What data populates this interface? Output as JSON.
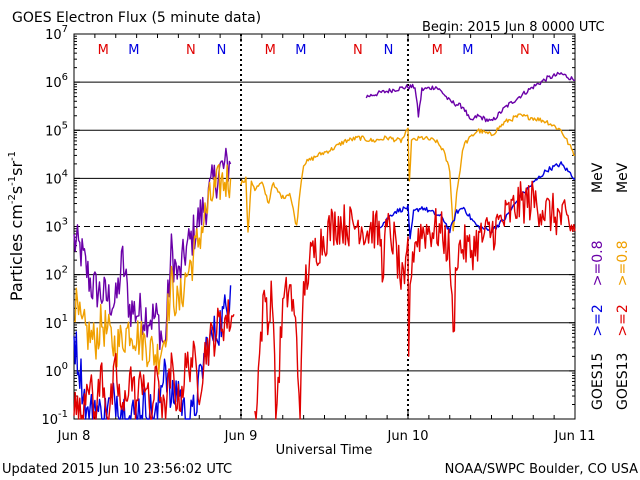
{
  "chart_data": {
    "type": "line",
    "title": "GOES Electron Flux (5 minute data)",
    "begin_label": "Begin: 2015 Jun 8 0000 UTC",
    "xlabel": "Universal Time",
    "ylabel_parts": [
      "Particles cm",
      "-2",
      "s",
      "-1",
      "sr",
      "-1"
    ],
    "updated": "Updated 2015 Jun 10 23:56:02 UTC",
    "credit": "NOAA/SWPC Boulder, CO USA",
    "x_ticks": [
      {
        "label": "Jun 8",
        "hours": 0
      },
      {
        "label": "Jun 9",
        "hours": 24
      },
      {
        "label": "Jun 10",
        "hours": 48
      },
      {
        "label": "Jun 11",
        "hours": 72
      }
    ],
    "x_range_hours": [
      0,
      72
    ],
    "y_scale": "log",
    "y_range": [
      0.1,
      10000000
    ],
    "y_ticks": [
      {
        "base": "10",
        "exp": "-1",
        "value": 0.1
      },
      {
        "base": "10",
        "exp": "0",
        "value": 1
      },
      {
        "base": "10",
        "exp": "1",
        "value": 10
      },
      {
        "base": "10",
        "exp": "2",
        "value": 100
      },
      {
        "base": "10",
        "exp": "3",
        "value": 1000
      },
      {
        "base": "10",
        "exp": "4",
        "value": 10000
      },
      {
        "base": "10",
        "exp": "5",
        "value": 100000
      },
      {
        "base": "10",
        "exp": "6",
        "value": 1000000
      },
      {
        "base": "10",
        "exp": "7",
        "value": 10000000
      }
    ],
    "threshold": 1000,
    "markers": [
      {
        "label": "M",
        "hours": 4.2,
        "color": "#e00000"
      },
      {
        "label": "M",
        "hours": 8.6,
        "color": "#0000e0"
      },
      {
        "label": "N",
        "hours": 16.8,
        "color": "#e00000"
      },
      {
        "label": "N",
        "hours": 21.2,
        "color": "#0000e0"
      },
      {
        "label": "M",
        "hours": 28.2,
        "color": "#e00000"
      },
      {
        "label": "M",
        "hours": 32.6,
        "color": "#0000e0"
      },
      {
        "label": "N",
        "hours": 40.8,
        "color": "#e00000"
      },
      {
        "label": "N",
        "hours": 45.2,
        "color": "#0000e0"
      },
      {
        "label": "M",
        "hours": 52.2,
        "color": "#e00000"
      },
      {
        "label": "M",
        "hours": 56.6,
        "color": "#0000e0"
      },
      {
        "label": "N",
        "hours": 64.8,
        "color": "#e00000"
      },
      {
        "label": "N",
        "hours": 69.2,
        "color": "#0000e0"
      }
    ],
    "legend": {
      "satellites": [
        {
          "label": "GOES15",
          "color": "#000000"
        },
        {
          "label": "GOES13",
          "color": "#000000"
        }
      ],
      "energies": [
        {
          "label": ">=2",
          "color": "#0000e0"
        },
        {
          "label": ">=2",
          "color": "#e00000"
        },
        {
          "label": ">=0.8",
          "color": "#6a00a8"
        },
        {
          "label": ">=0.8",
          "color": "#f0a000"
        }
      ],
      "unit": "MeV"
    },
    "series": [
      {
        "color": "#6a00a8",
        "segments": [
          {
            "type": "noisy",
            "points": [
              [
                0,
                500
              ],
              [
                1,
                300
              ],
              [
                2.5,
                60
              ],
              [
                4,
                40
              ],
              [
                6,
                25
              ],
              [
                7,
                200
              ],
              [
                8,
                20
              ],
              [
                10,
                15
              ],
              [
                12,
                12
              ],
              [
                13,
                3
              ],
              [
                14,
                300
              ],
              [
                15,
                80
              ],
              [
                16,
                300
              ],
              [
                17,
                600
              ],
              [
                18,
                1500
              ],
              [
                19,
                3000
              ],
              [
                20,
                8000
              ],
              [
                21,
                15000
              ],
              [
                22.5,
                20000
              ]
            ]
          },
          {
            "type": "smooth",
            "points": [
              [
                42,
                500000
              ],
              [
                44,
                600000
              ],
              [
                46,
                700000
              ],
              [
                48,
                800000
              ],
              [
                49,
                800000
              ],
              [
                49.5,
                200000
              ],
              [
                50,
                700000
              ],
              [
                52,
                800000
              ],
              [
                53,
                600000
              ],
              [
                54,
                400000
              ],
              [
                56,
                300000
              ],
              [
                57,
                150000
              ],
              [
                58,
                200000
              ],
              [
                60,
                150000
              ],
              [
                62,
                300000
              ],
              [
                64,
                500000
              ],
              [
                66,
                800000
              ],
              [
                68,
                1200000
              ],
              [
                70,
                1500000
              ],
              [
                72,
                1100000
              ]
            ]
          }
        ]
      },
      {
        "color": "#f0a000",
        "segments": [
          {
            "type": "noisy",
            "points": [
              [
                0,
                30
              ],
              [
                1,
                8
              ],
              [
                2,
                6
              ],
              [
                3,
                4
              ],
              [
                4,
                10
              ],
              [
                6,
                3
              ],
              [
                8,
                8
              ],
              [
                10,
                4
              ],
              [
                12,
                2
              ],
              [
                13,
                5
              ],
              [
                14,
                60
              ],
              [
                15,
                20
              ],
              [
                16,
                80
              ],
              [
                17,
                200
              ],
              [
                18,
                600
              ],
              [
                19,
                2000
              ],
              [
                20,
                5000
              ],
              [
                21,
                8000
              ],
              [
                22.5,
                10000
              ]
            ]
          },
          {
            "type": "smooth",
            "points": [
              [
                24,
                8000
              ],
              [
                24.7,
                10000
              ],
              [
                25,
                700
              ],
              [
                25.5,
                9000
              ],
              [
                26,
                6000
              ],
              [
                27,
                8000
              ],
              [
                28,
                3000
              ],
              [
                28.5,
                8000
              ],
              [
                29,
                6000
              ],
              [
                30,
                4000
              ],
              [
                31,
                5000
              ],
              [
                32,
                1000
              ],
              [
                32.5,
                6000
              ],
              [
                33,
                20000
              ],
              [
                35,
                30000
              ],
              [
                37,
                40000
              ],
              [
                39,
                60000
              ],
              [
                41,
                70000
              ],
              [
                43,
                60000
              ],
              [
                45,
                70000
              ],
              [
                47,
                60000
              ],
              [
                48,
                100000
              ],
              [
                48.2,
                8000
              ],
              [
                48.5,
                60000
              ],
              [
                50,
                70000
              ],
              [
                52,
                60000
              ],
              [
                53,
                40000
              ],
              [
                54,
                15000
              ],
              [
                54.5,
                800
              ],
              [
                55,
                5000
              ],
              [
                56,
                50000
              ],
              [
                58,
                100000
              ],
              [
                60,
                80000
              ],
              [
                62,
                150000
              ],
              [
                64,
                200000
              ],
              [
                66,
                180000
              ],
              [
                68,
                150000
              ],
              [
                70,
                100000
              ],
              [
                72,
                30000
              ]
            ]
          }
        ]
      },
      {
        "color": "#0000e0",
        "segments": [
          {
            "type": "noisy",
            "points": [
              [
                0,
                5
              ],
              [
                1,
                0.8
              ],
              [
                2,
                0.1
              ],
              [
                3,
                0.2
              ],
              [
                4,
                0.1
              ],
              [
                6,
                0.3
              ],
              [
                8,
                0.1
              ],
              [
                10,
                0.2
              ],
              [
                12,
                0.1
              ],
              [
                13,
                2
              ],
              [
                14,
                0.2
              ],
              [
                15,
                0.5
              ],
              [
                16,
                0.1
              ],
              [
                17,
                0.1
              ],
              [
                18,
                0.5
              ],
              [
                19,
                3
              ],
              [
                20,
                5
              ],
              [
                21,
                10
              ],
              [
                22,
                20
              ],
              [
                22.5,
                60
              ]
            ]
          },
          {
            "type": "smooth",
            "points": [
              [
                44,
                1000
              ],
              [
                46,
                2000
              ],
              [
                48,
                2500
              ],
              [
                48.3,
                500
              ],
              [
                48.8,
                2000
              ],
              [
                50,
                2500
              ],
              [
                52,
                1800
              ],
              [
                53,
                1500
              ],
              [
                54,
                800
              ],
              [
                55,
                2000
              ],
              [
                56,
                2500
              ],
              [
                57,
                1500
              ],
              [
                58,
                1000
              ],
              [
                60,
                800
              ],
              [
                62,
                1500
              ],
              [
                64,
                4000
              ],
              [
                66,
                8000
              ],
              [
                68,
                15000
              ],
              [
                70,
                20000
              ],
              [
                72,
                10000
              ]
            ]
          }
        ]
      },
      {
        "color": "#e00000",
        "segments": [
          {
            "type": "noisy",
            "points": [
              [
                0,
                0.2
              ],
              [
                1,
                0.1
              ],
              [
                2,
                1
              ],
              [
                3,
                0.1
              ],
              [
                4,
                1
              ],
              [
                5,
                0.1
              ],
              [
                6,
                1
              ],
              [
                7,
                0.1
              ],
              [
                8,
                1
              ],
              [
                9,
                0.2
              ],
              [
                10,
                1
              ],
              [
                11,
                0.1
              ],
              [
                12,
                1
              ],
              [
                13,
                0.1
              ],
              [
                14,
                1
              ],
              [
                15,
                0.2
              ],
              [
                16,
                1
              ],
              [
                17,
                2
              ],
              [
                18,
                0.5
              ],
              [
                19,
                3
              ],
              [
                20,
                5
              ],
              [
                21,
                10
              ],
              [
                22,
                12
              ],
              [
                23,
                15
              ]
            ]
          },
          {
            "type": "noisy",
            "points": [
              [
                26,
                0.1
              ],
              [
                27,
                10
              ],
              [
                27.5,
                40
              ],
              [
                28,
                10
              ],
              [
                28.5,
                60
              ],
              [
                29,
                0.1
              ],
              [
                30,
                20
              ],
              [
                31,
                60
              ],
              [
                32,
                5
              ],
              [
                32.5,
                0.1
              ],
              [
                33,
                50
              ],
              [
                34,
                200
              ],
              [
                35,
                400
              ],
              [
                36,
                600
              ],
              [
                37,
                1000
              ],
              [
                38,
                1200
              ],
              [
                40,
                1000
              ],
              [
                41,
                1200
              ],
              [
                42,
                800
              ],
              [
                43,
                1000
              ],
              [
                44,
                600
              ],
              [
                44.3,
                150
              ],
              [
                45,
                900
              ],
              [
                46,
                500
              ],
              [
                47,
                80
              ],
              [
                47.5,
                40
              ],
              [
                48,
                400
              ],
              [
                48.1,
                3
              ],
              [
                48.5,
                200
              ],
              [
                49,
                500
              ],
              [
                50,
                800
              ],
              [
                52,
                900
              ],
              [
                53,
                700
              ],
              [
                54,
                300
              ],
              [
                54.5,
                4
              ],
              [
                55,
                300
              ],
              [
                56,
                400
              ],
              [
                57,
                300
              ],
              [
                58,
                500
              ],
              [
                60,
                800
              ],
              [
                62,
                1500
              ],
              [
                64,
                3000
              ],
              [
                66,
                3500
              ],
              [
                68,
                2000
              ],
              [
                70,
                1500
              ],
              [
                72,
                800
              ]
            ]
          }
        ]
      }
    ]
  }
}
